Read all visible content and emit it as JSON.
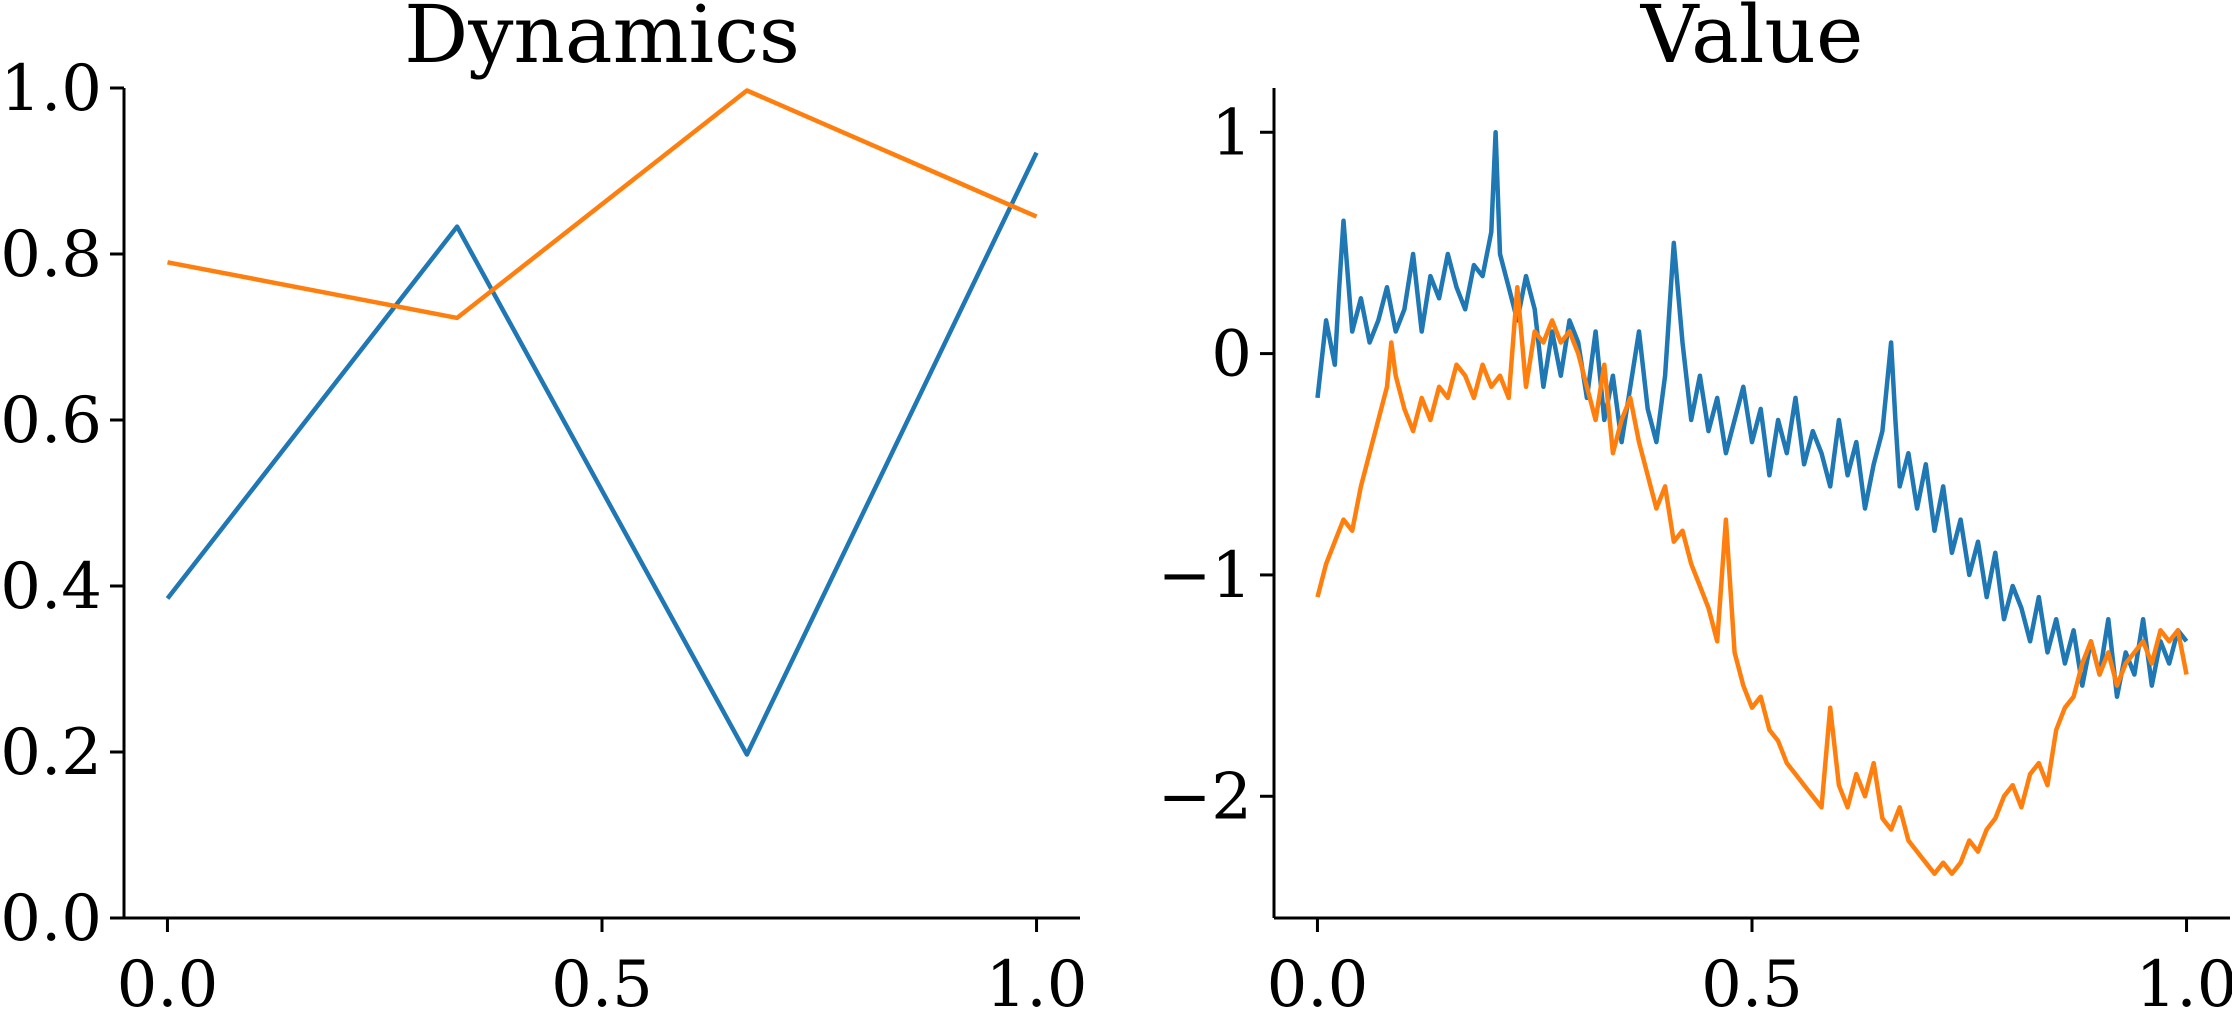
{
  "chart_data": [
    {
      "type": "line",
      "title": "Dynamics",
      "xlabel": "",
      "ylabel": "",
      "xlim": [
        -0.05,
        1.05
      ],
      "ylim": [
        0.0,
        1.0
      ],
      "xticks": [
        0.0,
        0.5,
        1.0
      ],
      "xtick_labels": [
        "0.0",
        "0.5",
        "1.0"
      ],
      "yticks": [
        0.0,
        0.2,
        0.4,
        0.6,
        0.8,
        1.0
      ],
      "ytick_labels": [
        "0.0",
        "0.2",
        "0.4",
        "0.6",
        "0.8",
        "1.0"
      ],
      "grid": false,
      "series": [
        {
          "color": "#1f77b4",
          "x": [
            0.0,
            0.3333,
            0.6667,
            1.0
          ],
          "y": [
            0.385,
            0.833,
            0.197,
            0.922
          ]
        },
        {
          "color": "#ff7f0e",
          "x": [
            0.0,
            0.3333,
            0.6667,
            1.0
          ],
          "y": [
            0.79,
            0.723,
            0.997,
            0.845
          ]
        }
      ]
    },
    {
      "type": "line",
      "title": "Value",
      "xlabel": "",
      "ylabel": "",
      "xlim": [
        -0.05,
        1.05
      ],
      "ylim": [
        -2.55,
        1.2
      ],
      "xticks": [
        0.0,
        0.5,
        1.0
      ],
      "xtick_labels": [
        "0.0",
        "0.5",
        "1.0"
      ],
      "yticks": [
        1,
        0,
        -1,
        -2
      ],
      "ytick_labels": [
        "1",
        "0",
        "−1",
        "−2"
      ],
      "grid": false,
      "series": [
        {
          "color": "#1f77b4",
          "x": [
            0.0,
            0.01,
            0.02,
            0.025,
            0.03,
            0.04,
            0.05,
            0.06,
            0.07,
            0.08,
            0.09,
            0.1,
            0.11,
            0.12,
            0.13,
            0.14,
            0.15,
            0.16,
            0.17,
            0.18,
            0.19,
            0.2,
            0.205,
            0.21,
            0.22,
            0.23,
            0.24,
            0.25,
            0.26,
            0.27,
            0.28,
            0.29,
            0.3,
            0.31,
            0.32,
            0.33,
            0.34,
            0.35,
            0.36,
            0.37,
            0.38,
            0.39,
            0.4,
            0.41,
            0.42,
            0.43,
            0.44,
            0.45,
            0.46,
            0.47,
            0.48,
            0.49,
            0.5,
            0.51,
            0.52,
            0.53,
            0.54,
            0.55,
            0.56,
            0.57,
            0.58,
            0.59,
            0.6,
            0.61,
            0.62,
            0.63,
            0.64,
            0.65,
            0.66,
            0.665,
            0.67,
            0.68,
            0.69,
            0.7,
            0.71,
            0.72,
            0.73,
            0.74,
            0.75,
            0.76,
            0.77,
            0.78,
            0.79,
            0.8,
            0.81,
            0.82,
            0.83,
            0.84,
            0.85,
            0.86,
            0.87,
            0.88,
            0.89,
            0.9,
            0.91,
            0.92,
            0.93,
            0.94,
            0.95,
            0.96,
            0.97,
            0.98,
            0.99,
            1.0
          ],
          "y": [
            -0.2,
            0.15,
            -0.05,
            0.3,
            0.6,
            0.1,
            0.25,
            0.05,
            0.15,
            0.3,
            0.1,
            0.2,
            0.45,
            0.1,
            0.35,
            0.25,
            0.45,
            0.3,
            0.2,
            0.4,
            0.35,
            0.55,
            1.0,
            0.45,
            0.3,
            0.15,
            0.35,
            0.2,
            -0.15,
            0.1,
            -0.1,
            0.15,
            0.05,
            -0.2,
            0.1,
            -0.3,
            -0.1,
            -0.4,
            -0.15,
            0.1,
            -0.25,
            -0.4,
            -0.1,
            0.5,
            0.05,
            -0.3,
            -0.1,
            -0.35,
            -0.2,
            -0.45,
            -0.3,
            -0.15,
            -0.4,
            -0.25,
            -0.55,
            -0.3,
            -0.45,
            -0.2,
            -0.5,
            -0.35,
            -0.45,
            -0.6,
            -0.3,
            -0.55,
            -0.4,
            -0.7,
            -0.5,
            -0.35,
            0.05,
            -0.3,
            -0.6,
            -0.45,
            -0.7,
            -0.5,
            -0.8,
            -0.6,
            -0.9,
            -0.75,
            -1.0,
            -0.85,
            -1.1,
            -0.9,
            -1.2,
            -1.05,
            -1.15,
            -1.3,
            -1.1,
            -1.35,
            -1.2,
            -1.4,
            -1.25,
            -1.5,
            -1.3,
            -1.45,
            -1.2,
            -1.55,
            -1.35,
            -1.45,
            -1.2,
            -1.5,
            -1.3,
            -1.4,
            -1.25,
            -1.3
          ]
        },
        {
          "color": "#ff7f0e",
          "x": [
            0.0,
            0.01,
            0.02,
            0.03,
            0.04,
            0.05,
            0.06,
            0.07,
            0.08,
            0.085,
            0.09,
            0.1,
            0.11,
            0.12,
            0.13,
            0.14,
            0.15,
            0.16,
            0.17,
            0.18,
            0.19,
            0.2,
            0.21,
            0.22,
            0.23,
            0.24,
            0.25,
            0.26,
            0.27,
            0.28,
            0.29,
            0.3,
            0.31,
            0.32,
            0.33,
            0.34,
            0.35,
            0.36,
            0.37,
            0.38,
            0.39,
            0.4,
            0.41,
            0.42,
            0.43,
            0.44,
            0.45,
            0.46,
            0.47,
            0.48,
            0.49,
            0.5,
            0.51,
            0.52,
            0.53,
            0.54,
            0.55,
            0.56,
            0.57,
            0.58,
            0.59,
            0.6,
            0.61,
            0.62,
            0.63,
            0.64,
            0.65,
            0.66,
            0.67,
            0.68,
            0.69,
            0.7,
            0.71,
            0.72,
            0.73,
            0.74,
            0.75,
            0.76,
            0.77,
            0.78,
            0.79,
            0.8,
            0.81,
            0.82,
            0.83,
            0.84,
            0.85,
            0.86,
            0.87,
            0.88,
            0.89,
            0.9,
            0.91,
            0.92,
            0.93,
            0.94,
            0.95,
            0.96,
            0.97,
            0.98,
            0.99,
            1.0
          ],
          "y": [
            -1.1,
            -0.95,
            -0.85,
            -0.75,
            -0.8,
            -0.6,
            -0.45,
            -0.3,
            -0.15,
            0.05,
            -0.1,
            -0.25,
            -0.35,
            -0.2,
            -0.3,
            -0.15,
            -0.2,
            -0.05,
            -0.1,
            -0.2,
            -0.05,
            -0.15,
            -0.1,
            -0.2,
            0.3,
            -0.15,
            0.1,
            0.05,
            0.15,
            0.05,
            0.1,
            0.0,
            -0.15,
            -0.3,
            -0.05,
            -0.45,
            -0.3,
            -0.2,
            -0.4,
            -0.55,
            -0.7,
            -0.6,
            -0.85,
            -0.8,
            -0.95,
            -1.05,
            -1.15,
            -1.3,
            -0.75,
            -1.35,
            -1.5,
            -1.6,
            -1.55,
            -1.7,
            -1.75,
            -1.85,
            -1.9,
            -1.95,
            -2.0,
            -2.05,
            -1.6,
            -1.95,
            -2.05,
            -1.9,
            -2.0,
            -1.85,
            -2.1,
            -2.15,
            -2.05,
            -2.2,
            -2.25,
            -2.3,
            -2.35,
            -2.3,
            -2.35,
            -2.3,
            -2.2,
            -2.25,
            -2.15,
            -2.1,
            -2.0,
            -1.95,
            -2.05,
            -1.9,
            -1.85,
            -1.95,
            -1.7,
            -1.6,
            -1.55,
            -1.4,
            -1.3,
            -1.45,
            -1.35,
            -1.5,
            -1.4,
            -1.35,
            -1.3,
            -1.4,
            -1.25,
            -1.3,
            -1.25,
            -1.45
          ]
        }
      ]
    }
  ]
}
